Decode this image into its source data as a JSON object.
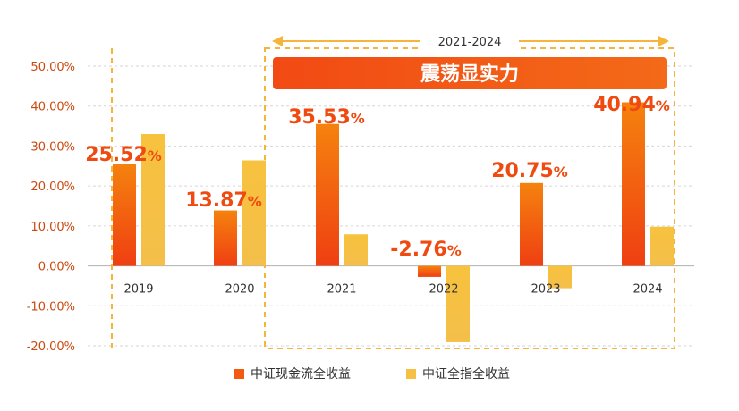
{
  "chart_data": {
    "type": "bar",
    "categories": [
      "2019",
      "2020",
      "2021",
      "2022",
      "2023",
      "2024"
    ],
    "series": [
      {
        "name": "中证现金流全收益",
        "color": "#f25a12",
        "values": [
          25.52,
          13.87,
          35.53,
          -2.76,
          20.75,
          40.94
        ],
        "labels": [
          "25.52",
          "13.87",
          "35.53",
          "-2.76",
          "20.75",
          "40.94"
        ]
      },
      {
        "name": "中证全指全收益",
        "color": "#f6c142",
        "values": [
          33.0,
          26.4,
          7.9,
          -19.1,
          -5.6,
          9.8
        ]
      }
    ],
    "label_unit": "%",
    "ylim": [
      -20,
      50
    ],
    "yticks": [
      -20,
      -10,
      0,
      10,
      20,
      30,
      40,
      50
    ],
    "ytick_labels": [
      "-20.00%",
      "-10.00%",
      "0.00%",
      "10.00%",
      "20.00%",
      "30.00%",
      "40.00%",
      "50.00%"
    ],
    "grid": true,
    "legend_position": "bottom",
    "highlight": {
      "range_label": "2021-2024",
      "banner_text": "震荡显实力",
      "start_category": "2021",
      "end_category": "2024"
    },
    "colors": {
      "frame": "#f5b53a",
      "banner": "#f2511a",
      "tick_text": "#c94a10",
      "data_label": "#ef4a10"
    }
  }
}
